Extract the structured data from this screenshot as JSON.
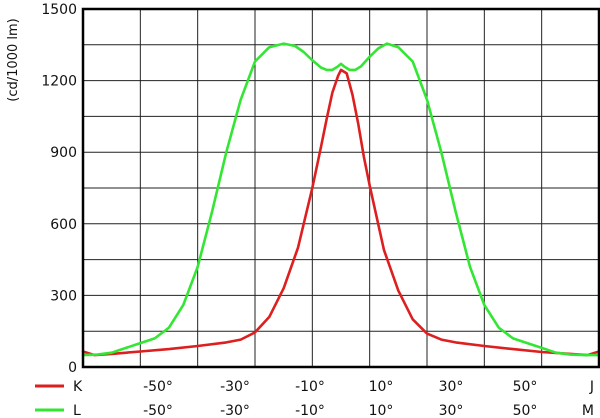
{
  "chart_data": {
    "type": "line",
    "ylabel": "(cd/1000 lm)",
    "ylim": [
      0,
      1500
    ],
    "xlim": [
      -90,
      90
    ],
    "y_ticks": [
      0,
      300,
      600,
      900,
      1200,
      1500
    ],
    "y_tick_labels": [
      "0",
      "300",
      "600",
      "900",
      "1200",
      "1500"
    ],
    "x_gridlines": [
      -70,
      -50,
      -30,
      -10,
      10,
      30,
      50,
      70
    ],
    "y_gridlines": [
      150,
      300,
      450,
      600,
      750,
      900,
      1050,
      1200,
      1350
    ],
    "grid": true,
    "legend_position": "bottom-left",
    "series": [
      {
        "name": "K",
        "color": "#dd1f1f",
        "axis_labels": [
          "-50°",
          "-30°",
          "-10°",
          "10°",
          "30°",
          "50°",
          "J"
        ],
        "x": [
          -90,
          -86,
          -80,
          -70,
          -60,
          -50,
          -40,
          -35,
          -30,
          -25,
          -20,
          -15,
          -10,
          -7,
          -5,
          -3,
          -1,
          0,
          2,
          4,
          6,
          8,
          10,
          15,
          20,
          25,
          30,
          35,
          40,
          50,
          60,
          70,
          80,
          86,
          90
        ],
        "y": [
          65,
          50,
          55,
          65,
          75,
          88,
          103,
          115,
          145,
          210,
          330,
          500,
          750,
          920,
          1040,
          1150,
          1220,
          1245,
          1230,
          1140,
          1020,
          880,
          760,
          490,
          320,
          200,
          140,
          115,
          103,
          88,
          75,
          63,
          55,
          50,
          65
        ]
      },
      {
        "name": "L",
        "color": "#33e633",
        "axis_labels": [
          "-50°",
          "-30°",
          "-10°",
          "10°",
          "30°",
          "50°",
          "M"
        ],
        "x": [
          -90,
          -85,
          -80,
          -75,
          -70,
          -65,
          -60,
          -55,
          -50,
          -45,
          -40,
          -35,
          -30,
          -25,
          -20,
          -16,
          -13,
          -10,
          -7,
          -5,
          -3,
          -1,
          0,
          1,
          3,
          5,
          7,
          10,
          13,
          16,
          20,
          25,
          30,
          35,
          40,
          45,
          50,
          55,
          60,
          65,
          70,
          75,
          80,
          85,
          90
        ],
        "y": [
          50,
          52,
          60,
          80,
          100,
          120,
          165,
          260,
          420,
          650,
          900,
          1120,
          1280,
          1340,
          1355,
          1345,
          1320,
          1285,
          1255,
          1245,
          1245,
          1260,
          1270,
          1260,
          1245,
          1245,
          1260,
          1300,
          1335,
          1355,
          1340,
          1280,
          1120,
          900,
          650,
          420,
          260,
          165,
          120,
          100,
          80,
          60,
          52,
          50,
          50
        ]
      }
    ]
  }
}
